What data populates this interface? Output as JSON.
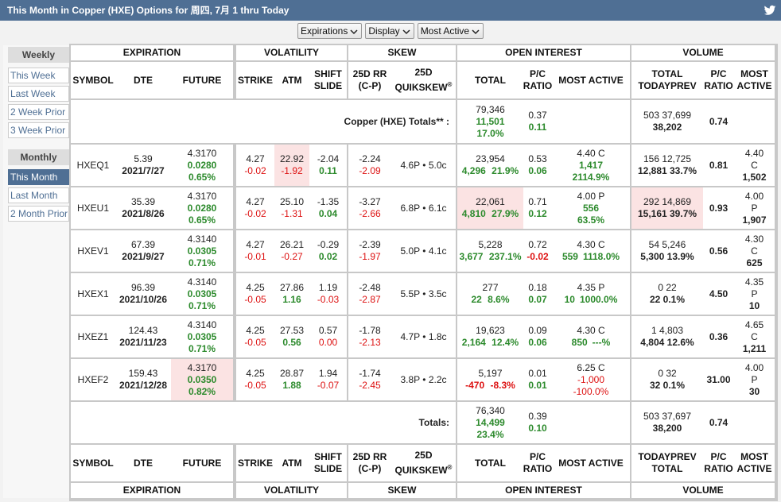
{
  "title": "This Month in Copper (HXE) Options for 周四, 7月 1 thru Today",
  "toolbar": {
    "expirations": "Expirations",
    "display": "Display",
    "most_active": "Most Active"
  },
  "sidebar": {
    "weekly_header": "Weekly",
    "weekly": [
      "This Week",
      "Last Week",
      "2 Week Prior",
      "3 Week Prior"
    ],
    "monthly_header": "Monthly",
    "monthly": [
      "This Month",
      "Last Month",
      "2 Month Prior"
    ]
  },
  "sections": {
    "expiration": "EXPIRATION",
    "volatility": "VOLATILITY",
    "skew": "SKEW",
    "open_interest": "OPEN INTEREST",
    "volume": "VOLUME"
  },
  "headers": {
    "symbol": "SYMBOL",
    "dte": "DTE",
    "future": "FUTURE",
    "strike": "STRIKE",
    "atm": "ATM",
    "shift_slide": "SHIFT SLIDE",
    "rr": "25D RR (C-P)",
    "quikskew": "25D QUIKSKEW",
    "quikskew_mark": "®",
    "total": "TOTAL",
    "pc_ratio": "P/C RATIO",
    "most_active": "MOST ACTIVE",
    "vol_total": "TOTAL",
    "vol_today": "TODAY",
    "vol_prev": "PREV",
    "vol_pc": "P/C RATIO",
    "vol_most": "MOST ACTIVE"
  },
  "totals_top": {
    "label": "Copper (HXE) Totals** :",
    "oi": "79,346",
    "oi_chg": "11,501",
    "oi_pct": "17.0%",
    "pc": "0.37",
    "pc_chg": "0.11",
    "vol": "503 37,699",
    "vol_total": "38,202",
    "vol_pc": "0.74"
  },
  "rows": [
    {
      "symbol": "HXEQ1",
      "dte": "5.39",
      "date": "2021/7/27",
      "fut": "4.3170",
      "fut_chg": "0.0280",
      "fut_pct": "0.65%",
      "strike": "4.27",
      "strike_chg": "-0.02",
      "atm": "22.92",
      "atm_chg": "-1.92",
      "shift": "-2.04",
      "shift_chg": "0.11",
      "rr": "-2.24",
      "rr_chg": "-2.09",
      "qs": "4.6P • 5.0c",
      "oi": "23,954",
      "oi_chg": "4,296",
      "oi_pct": "21.9%",
      "pc": "0.53",
      "pc_chg": "0.06",
      "ma": "4.40 C",
      "ma_v": "1,417",
      "ma_p": "2114.9%",
      "vol": "156 12,725",
      "vol2": "12,881 33.7%",
      "vpc": "0.81",
      "vma1": "4.40",
      "vma2": "C",
      "vma3": "1,502"
    },
    {
      "symbol": "HXEU1",
      "dte": "35.39",
      "date": "2021/8/26",
      "fut": "4.3170",
      "fut_chg": "0.0280",
      "fut_pct": "0.65%",
      "strike": "4.27",
      "strike_chg": "-0.02",
      "atm": "25.10",
      "atm_chg": "-1.31",
      "shift": "-1.35",
      "shift_chg": "0.04",
      "rr": "-3.27",
      "rr_chg": "-2.66",
      "qs": "6.8P • 6.1c",
      "oi": "22,061",
      "oi_chg": "4,810",
      "oi_pct": "27.9%",
      "pc": "0.71",
      "pc_chg": "0.12",
      "ma": "4.00 P",
      "ma_v": "556",
      "ma_p": "63.5%",
      "vol": "292 14,869",
      "vol2": "15,161 39.7%",
      "vpc": "0.93",
      "vma1": "4.00",
      "vma2": "P",
      "vma3": "1,907"
    },
    {
      "symbol": "HXEV1",
      "dte": "67.39",
      "date": "2021/9/27",
      "fut": "4.3140",
      "fut_chg": "0.0305",
      "fut_pct": "0.71%",
      "strike": "4.27",
      "strike_chg": "-0.01",
      "atm": "26.21",
      "atm_chg": "-0.27",
      "shift": "-0.29",
      "shift_chg": "0.02",
      "rr": "-2.39",
      "rr_chg": "-1.97",
      "qs": "5.0P • 4.1c",
      "oi": "5,228",
      "oi_chg": "3,677",
      "oi_pct": "237.1%",
      "pc": "0.72",
      "pc_chg": "-0.02",
      "ma": "4.30 C",
      "ma_v": "559",
      "ma_p": "1118.0%",
      "vol": "54 5,246",
      "vol2": "5,300 13.9%",
      "vpc": "0.56",
      "vma1": "4.30",
      "vma2": "C",
      "vma3": "625"
    },
    {
      "symbol": "HXEX1",
      "dte": "96.39",
      "date": "2021/10/26",
      "fut": "4.3140",
      "fut_chg": "0.0305",
      "fut_pct": "0.71%",
      "strike": "4.25",
      "strike_chg": "-0.05",
      "atm": "27.86",
      "atm_chg": "1.16",
      "shift": "1.19",
      "shift_chg": "-0.03",
      "rr": "-2.48",
      "rr_chg": "-2.87",
      "qs": "5.5P • 3.5c",
      "oi": "277",
      "oi_chg": "22",
      "oi_pct": "8.6%",
      "pc": "0.18",
      "pc_chg": "0.07",
      "ma": "4.35 P",
      "ma_v": "10",
      "ma_p": "1000.0%",
      "vol": "0 22",
      "vol2": "22 0.1%",
      "vpc": "4.50",
      "vma1": "4.35",
      "vma2": "P",
      "vma3": "10"
    },
    {
      "symbol": "HXEZ1",
      "dte": "124.43",
      "date": "2021/11/23",
      "fut": "4.3140",
      "fut_chg": "0.0305",
      "fut_pct": "0.71%",
      "strike": "4.25",
      "strike_chg": "-0.05",
      "atm": "27.53",
      "atm_chg": "0.56",
      "shift": "0.57",
      "shift_chg": "0.00",
      "rr": "-1.78",
      "rr_chg": "-2.13",
      "qs": "4.7P • 1.8c",
      "oi": "19,623",
      "oi_chg": "2,164",
      "oi_pct": "12.4%",
      "pc": "0.09",
      "pc_chg": "0.06",
      "ma": "4.30 C",
      "ma_v": "850",
      "ma_p": "---%",
      "vol": "1 4,803",
      "vol2": "4,804 12.6%",
      "vpc": "0.36",
      "vma1": "4.65",
      "vma2": "C",
      "vma3": "1,211"
    },
    {
      "symbol": "HXEF2",
      "dte": "159.43",
      "date": "2021/12/28",
      "fut": "4.3170",
      "fut_chg": "0.0350",
      "fut_pct": "0.82%",
      "strike": "4.25",
      "strike_chg": "-0.05",
      "atm": "28.87",
      "atm_chg": "1.88",
      "shift": "1.94",
      "shift_chg": "-0.07",
      "rr": "-1.74",
      "rr_chg": "-2.45",
      "qs": "3.8P • 2.2c",
      "oi": "5,197",
      "oi_chg": "-470",
      "oi_pct": "-8.3%",
      "pc": "0.01",
      "pc_chg": "0.01",
      "ma": "6.25 C",
      "ma_v": "-1,000",
      "ma_p": "-100.0%",
      "vol": "0 32",
      "vol2": "32 0.1%",
      "vpc": "31.00",
      "vma1": "4.00",
      "vma2": "P",
      "vma3": "30"
    }
  ],
  "totals_bottom": {
    "label": "Totals:",
    "oi": "76,340",
    "oi_chg": "14,499",
    "oi_pct": "23.4%",
    "pc": "0.39",
    "pc_chg": "0.10",
    "vol": "503 37,697",
    "vol_total": "38,200",
    "vol_pc": "0.74"
  },
  "colors": {
    "accent": "#4f6f94",
    "positive": "#2c8a2c",
    "negative": "#dd1111",
    "highlight": "#fbe3e3"
  }
}
